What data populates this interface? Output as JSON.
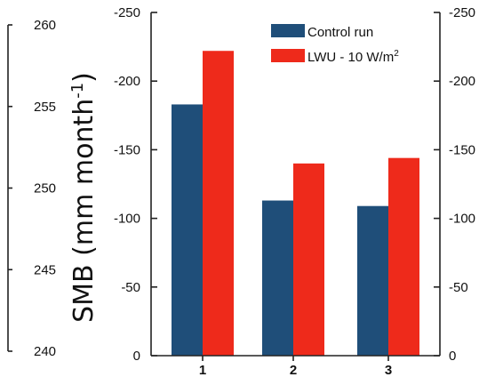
{
  "chart_data": {
    "type": "bar",
    "categories": [
      "1",
      "2",
      "3"
    ],
    "series": [
      {
        "name": "Control run",
        "values": [
          -183,
          -113,
          -109
        ],
        "color": "#1f4e79"
      },
      {
        "name_main": "LWU - 10 W/m",
        "name_sup": "2",
        "values": [
          -222,
          -140,
          -144
        ],
        "color": "#ee2a1b"
      }
    ],
    "ylabel_main": "SMB (mm month",
    "ylabel_sup": "-1",
    "ylabel_close": ")",
    "ylim": [
      0,
      -250
    ],
    "yticks": [
      0,
      -50,
      -100,
      -150,
      -200,
      -250
    ],
    "ytick_labels": [
      "0",
      "-50",
      "-100",
      "-150",
      "-200",
      "-250"
    ],
    "right_ytick_labels": [
      "0",
      "-50",
      "-100",
      "-150",
      "-200",
      "-250"
    ],
    "left_axis": {
      "ylim": [
        240,
        260
      ],
      "yticks": [
        240,
        245,
        250,
        255,
        260
      ],
      "ytick_labels": [
        "240",
        "245",
        "250",
        "255",
        "260"
      ]
    },
    "legend_position": "top-right",
    "grid": false
  }
}
